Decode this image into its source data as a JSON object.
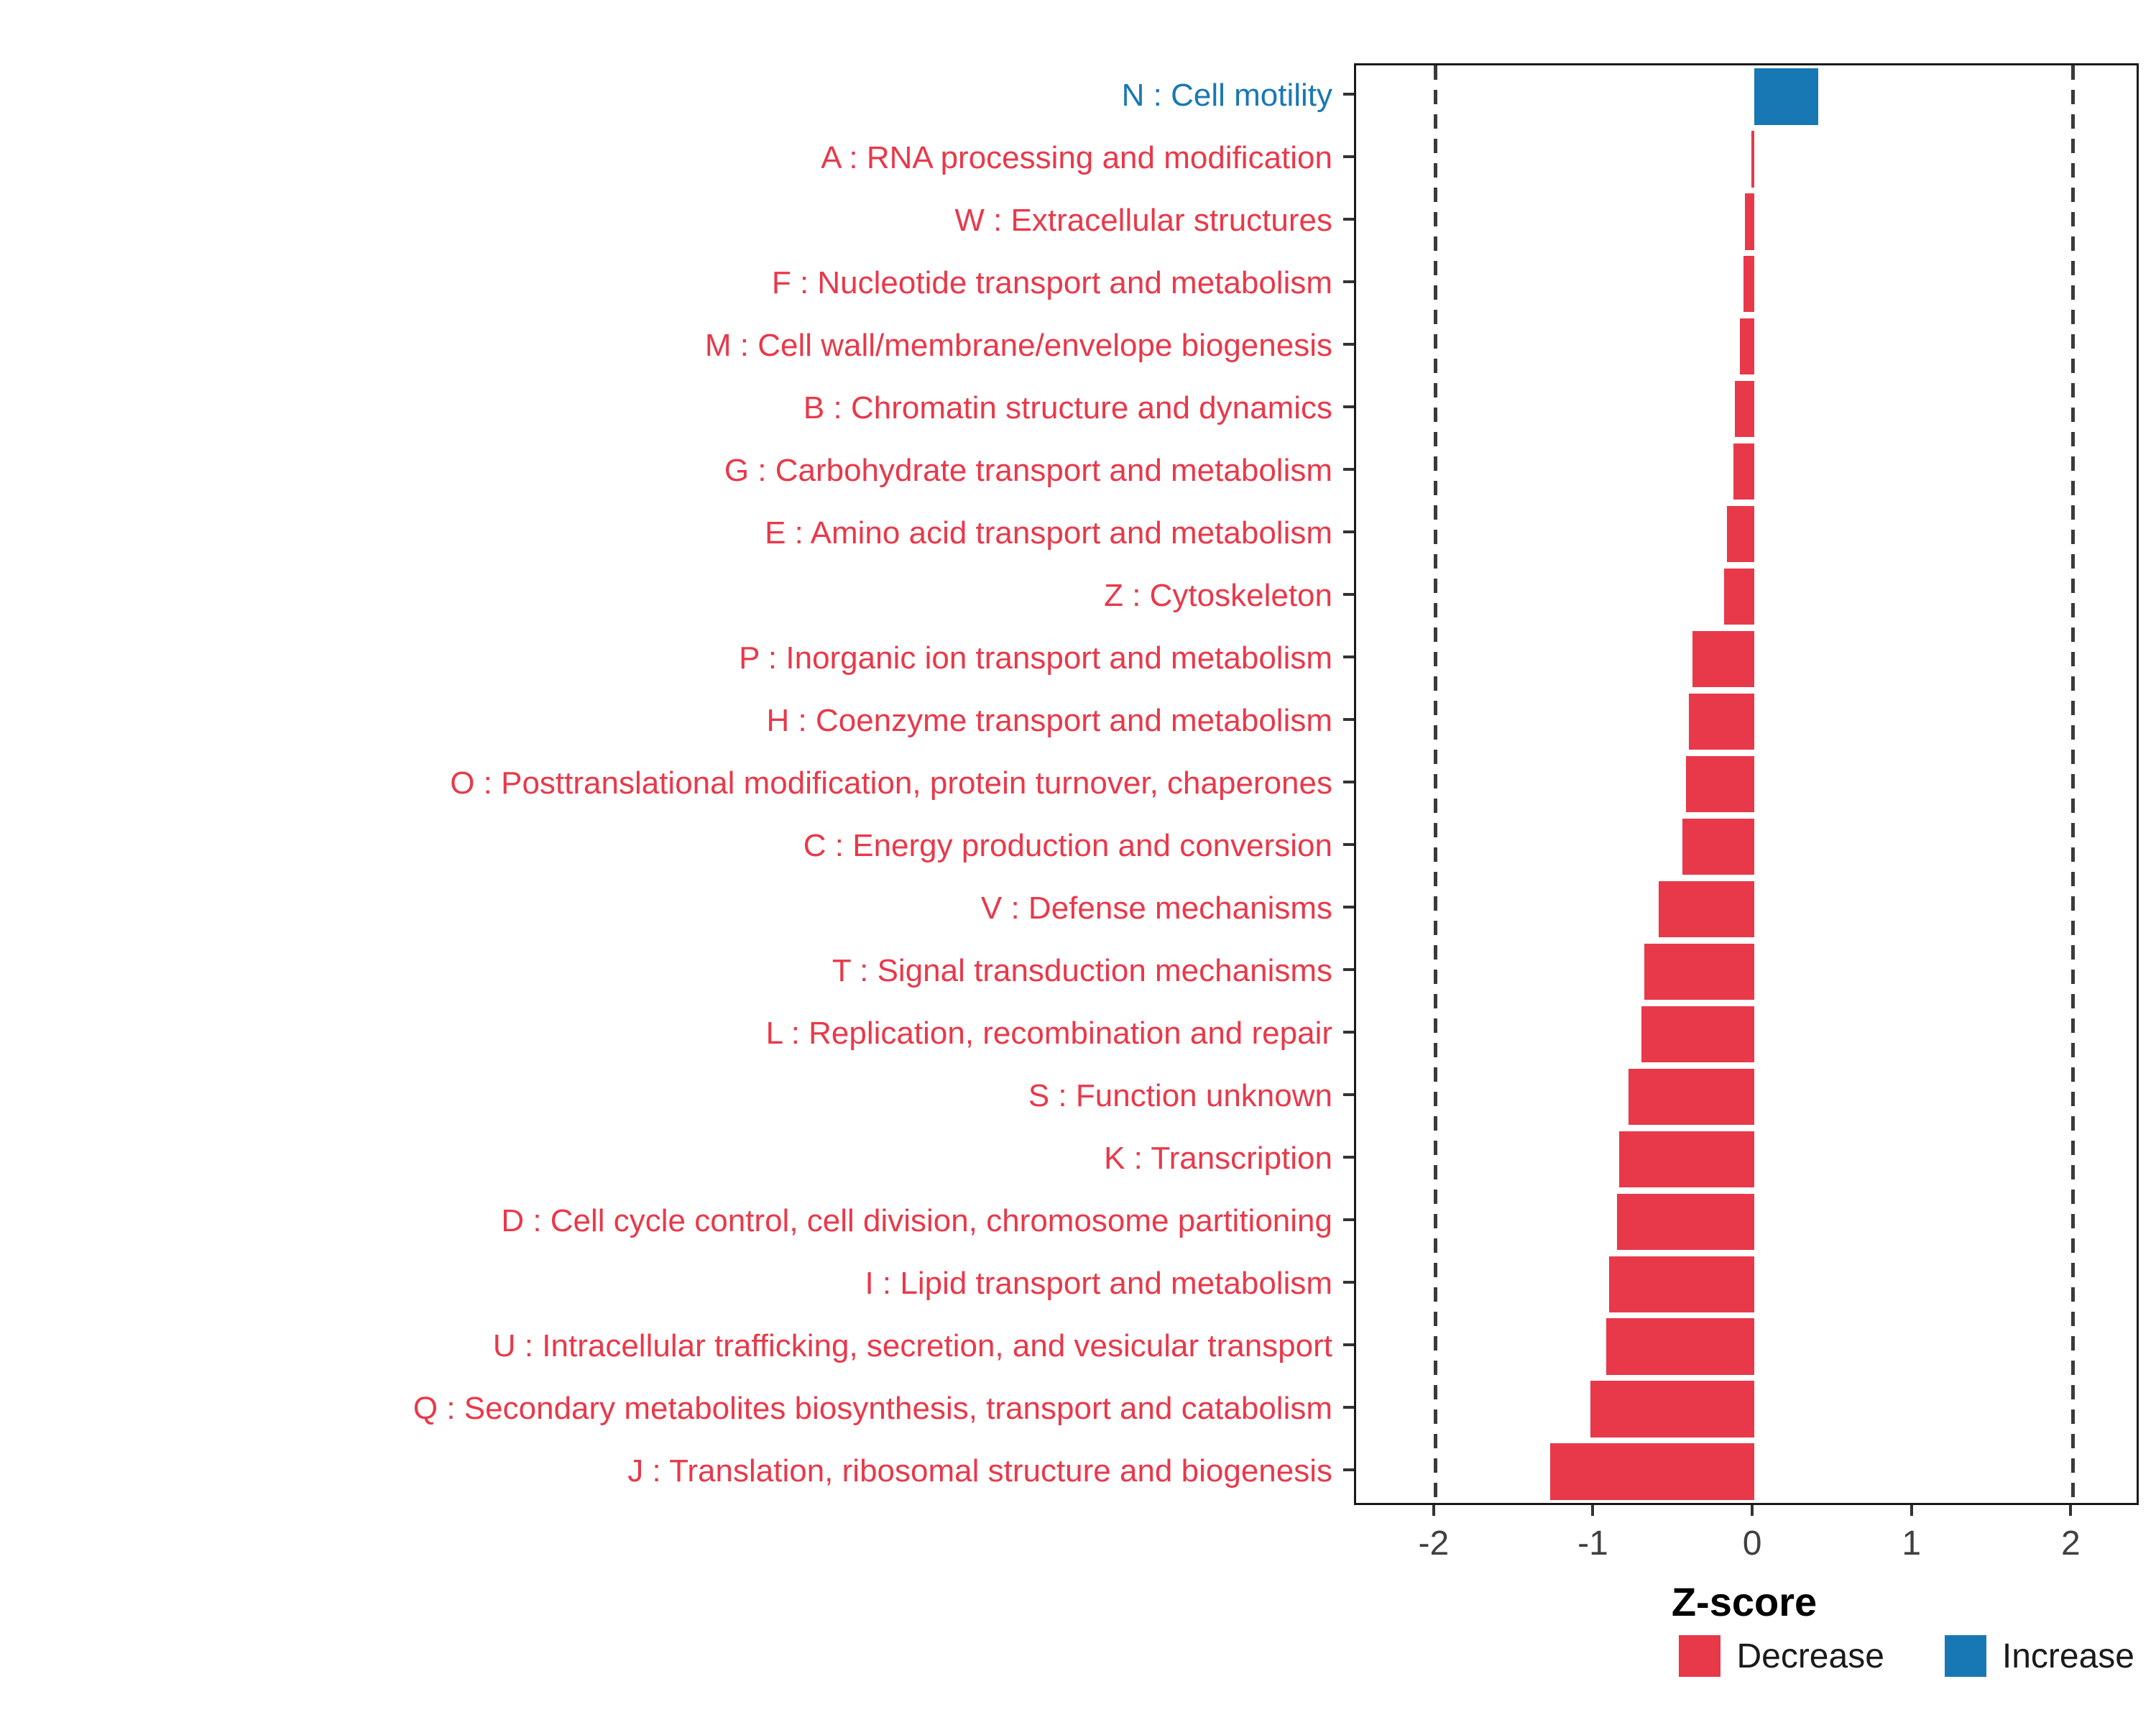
{
  "chart_data": {
    "type": "bar",
    "orientation": "horizontal",
    "title": "",
    "xlabel": "Z-score",
    "ylabel": "",
    "xlim": [
      -2.5,
      2.4
    ],
    "xticks": [
      "-2",
      "-1",
      "0",
      "1",
      "2"
    ],
    "xtick_values": [
      -2,
      -1,
      0,
      1,
      2
    ],
    "vlines": [
      -2,
      2
    ],
    "grid": false,
    "legend_position": "bottom-right",
    "categories": [
      "N : Cell motility",
      "A : RNA processing and modification",
      "W : Extracellular structures",
      "F : Nucleotide transport and metabolism",
      "M : Cell wall/membrane/envelope biogenesis",
      "B : Chromatin structure and dynamics",
      "G : Carbohydrate transport and metabolism",
      "E : Amino acid transport and metabolism",
      "Z : Cytoskeleton",
      "P : Inorganic ion transport and metabolism",
      "H : Coenzyme transport and metabolism",
      "O : Posttranslational modification, protein turnover, chaperones",
      "C : Energy production and conversion",
      "V : Defense mechanisms",
      "T : Signal transduction mechanisms",
      "L : Replication, recombination and repair",
      "S : Function unknown",
      "K : Transcription",
      "D : Cell cycle control, cell division, chromosome partitioning",
      "I : Lipid transport and metabolism",
      "U : Intracellular trafficking, secretion, and vesicular transport",
      "Q : Secondary metabolites biosynthesis, transport and catabolism",
      "J : Translation, ribosomal structure and biogenesis"
    ],
    "values": [
      0.4,
      -0.02,
      -0.06,
      -0.07,
      -0.09,
      -0.12,
      -0.13,
      -0.17,
      -0.19,
      -0.39,
      -0.41,
      -0.43,
      -0.45,
      -0.6,
      -0.69,
      -0.71,
      -0.79,
      -0.85,
      -0.86,
      -0.91,
      -0.93,
      -1.03,
      -1.28
    ],
    "colors": {
      "decrease": "#E8394A",
      "increase": "#1878B4",
      "dashed_line": "#3a3a3a",
      "panel_border": "#1a1a1a",
      "tick_text": "#404040"
    },
    "legend": [
      {
        "label": "Decrease",
        "color": "#E8394A"
      },
      {
        "label": "Increase",
        "color": "#1878B4"
      }
    ]
  }
}
